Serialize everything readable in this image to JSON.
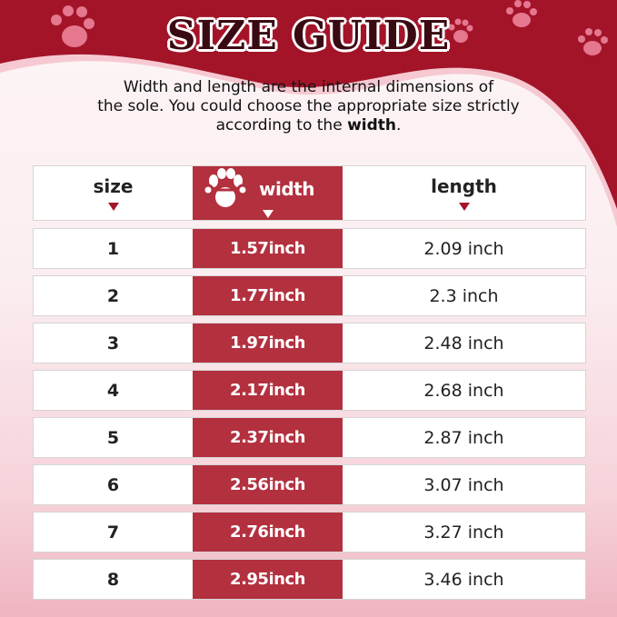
{
  "title": "SIZE GUIDE",
  "description": {
    "line1": "Width and length are the internal dimensions of",
    "line2": "the sole. You could choose the appropriate size strictly",
    "line3_pre": "according to the ",
    "line3_bold": "width",
    "line3_post": "."
  },
  "colors": {
    "brand_red": "#a31429",
    "width_column": "#b3303f",
    "paw": "#e5778f"
  },
  "table": {
    "headers": {
      "size": "size",
      "width": "width",
      "length": "length"
    },
    "width_header_icon": "paw-measure-icon",
    "rows": [
      {
        "size": "1",
        "width": "1.57inch",
        "length": "2.09 inch"
      },
      {
        "size": "2",
        "width": "1.77inch",
        "length": "2.3 inch"
      },
      {
        "size": "3",
        "width": "1.97inch",
        "length": "2.48 inch"
      },
      {
        "size": "4",
        "width": "2.17inch",
        "length": "2.68 inch"
      },
      {
        "size": "5",
        "width": "2.37inch",
        "length": "2.87 inch"
      },
      {
        "size": "6",
        "width": "2.56inch",
        "length": "3.07 inch"
      },
      {
        "size": "7",
        "width": "2.76inch",
        "length": "3.27 inch"
      },
      {
        "size": "8",
        "width": "2.95inch",
        "length": "3.46 inch"
      }
    ]
  }
}
